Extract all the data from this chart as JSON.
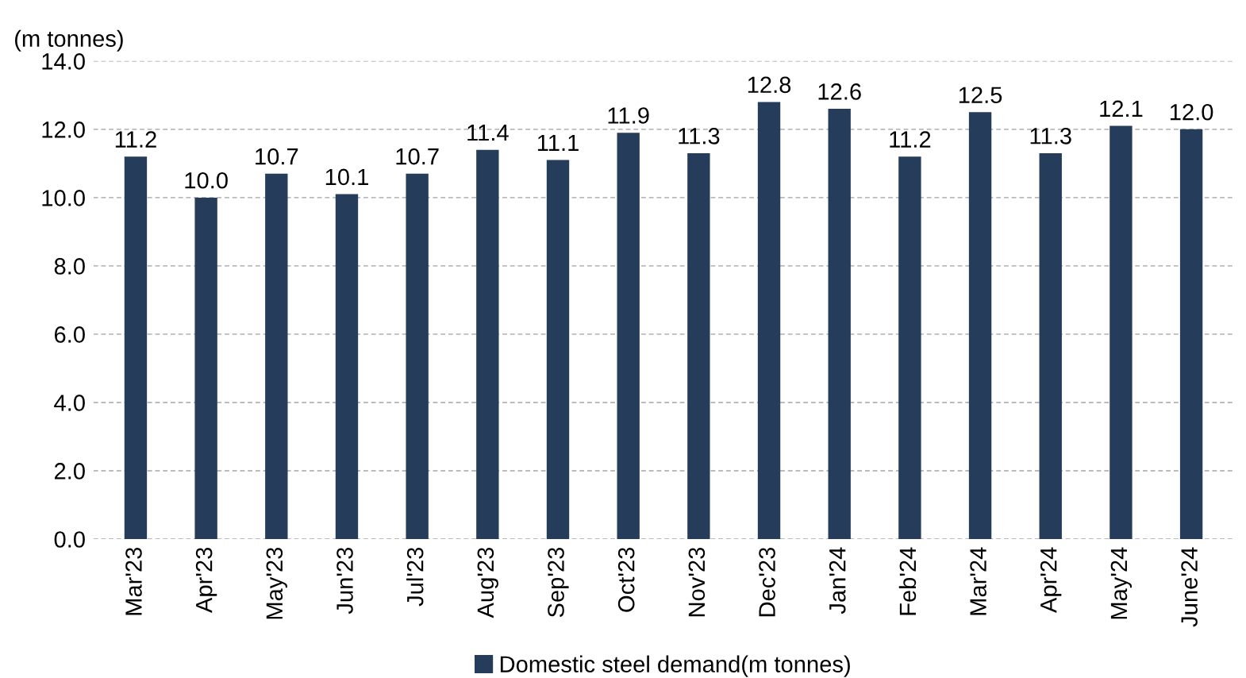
{
  "chart_data": {
    "type": "bar",
    "ylabel": "(m tonnes)",
    "categories": [
      "Mar'23",
      "Apr'23",
      "May'23",
      "Jun'23",
      "Jul'23",
      "Aug'23",
      "Sep'23",
      "Oct'23",
      "Nov'23",
      "Dec'23",
      "Jan'24",
      "Feb'24",
      "Mar'24",
      "Apr'24",
      "May'24",
      "June'24"
    ],
    "series": [
      {
        "name": "Domestic steel demand(m tonnes)",
        "color": "#253d5b",
        "values": [
          11.2,
          10.0,
          10.7,
          10.1,
          10.7,
          11.4,
          11.1,
          11.9,
          11.3,
          12.8,
          12.6,
          11.2,
          12.5,
          11.3,
          12.1,
          12.0
        ]
      }
    ],
    "value_labels": [
      "11.2",
      "10.0",
      "10.7",
      "10.1",
      "10.7",
      "11.4",
      "11.1",
      "11.9",
      "11.3",
      "12.8",
      "12.6",
      "11.2",
      "12.5",
      "11.3",
      "12.1",
      "12.0"
    ],
    "ylim": [
      0,
      14
    ],
    "yticks": [
      {
        "value": 0,
        "label": "0.0"
      },
      {
        "value": 2,
        "label": "2.0"
      },
      {
        "value": 4,
        "label": "4.0"
      },
      {
        "value": 6,
        "label": "6.0"
      },
      {
        "value": 8,
        "label": "8.0"
      },
      {
        "value": 10,
        "label": "10.0"
      },
      {
        "value": 12,
        "label": "12.0"
      },
      {
        "value": 14,
        "label": "14.0"
      }
    ],
    "grid": "y",
    "legend": "bottom"
  }
}
